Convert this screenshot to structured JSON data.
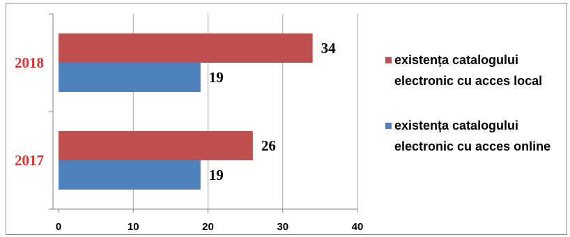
{
  "chart_data": {
    "type": "bar",
    "orientation": "horizontal",
    "categories": [
      "2018",
      "2017"
    ],
    "series": [
      {
        "name": "existența catalogului electronic cu acces local",
        "name_lines": [
          "existența catalogului",
          "electronic cu acces local"
        ],
        "color": "#c0504d",
        "values": [
          34,
          26
        ]
      },
      {
        "name": "existența catalogului electronic cu acces online",
        "name_lines": [
          "existența catalogului",
          "electronic cu acces online"
        ],
        "color": "#4f81bd",
        "values": [
          19,
          19
        ]
      }
    ],
    "xlim": [
      0,
      40
    ],
    "xticks": [
      0,
      10,
      20,
      30,
      40
    ],
    "category_label_color": "#e03030",
    "grid": true,
    "legend_position": "right"
  }
}
